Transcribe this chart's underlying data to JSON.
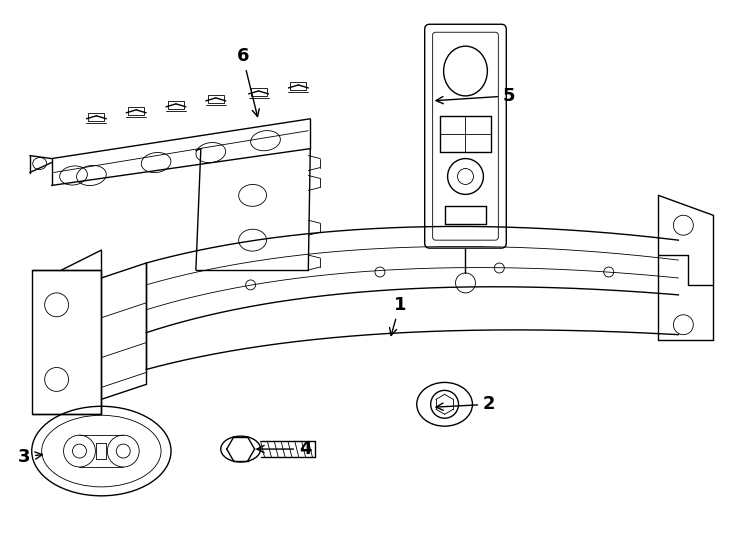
{
  "bg_color": "#ffffff",
  "line_color": "#000000",
  "lw": 1.0,
  "tlw": 0.6,
  "figsize": [
    7.34,
    5.4
  ],
  "dpi": 100
}
